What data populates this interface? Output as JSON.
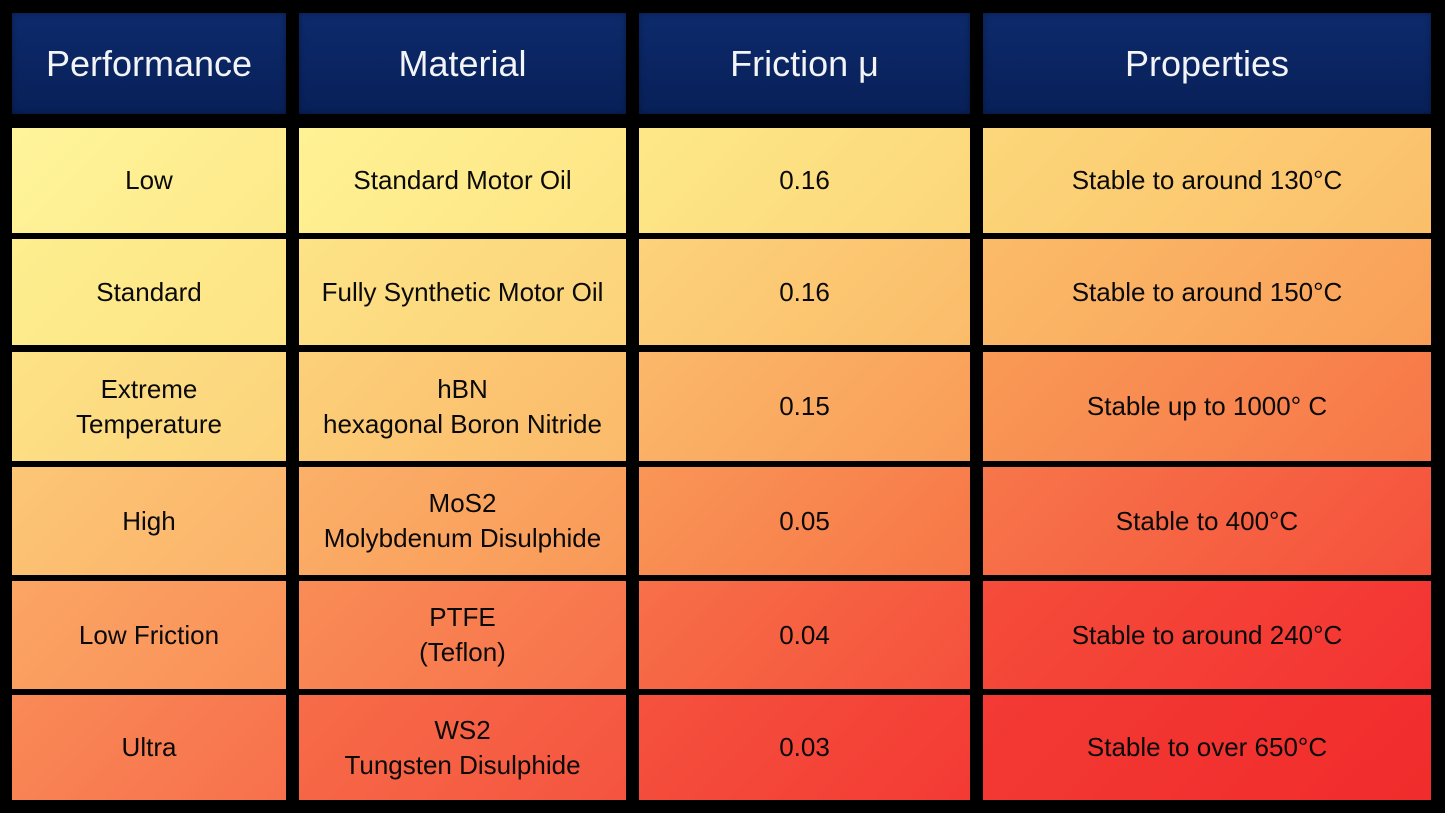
{
  "table": {
    "headers": [
      "Performance",
      "Material",
      "Friction μ",
      "Properties"
    ],
    "rows": [
      {
        "performance": [
          "Low"
        ],
        "material": [
          "Standard Motor Oil"
        ],
        "friction": "0.16",
        "properties": "Stable to around 130°C"
      },
      {
        "performance": [
          "Standard"
        ],
        "material": [
          "Fully Synthetic Motor Oil"
        ],
        "friction": "0.16",
        "properties": "Stable to around 150°C"
      },
      {
        "performance": [
          "Extreme",
          "Temperature"
        ],
        "material": [
          "hBN",
          "hexagonal Boron Nitride"
        ],
        "friction": "0.15",
        "properties": "Stable up to 1000° C"
      },
      {
        "performance": [
          "High"
        ],
        "material": [
          "MoS2",
          "Molybdenum Disulphide"
        ],
        "friction": "0.05",
        "properties": "Stable to 400°C"
      },
      {
        "performance": [
          "Low Friction"
        ],
        "material": [
          "PTFE",
          "(Teflon)"
        ],
        "friction": "0.04",
        "properties": "Stable to around 240°C"
      },
      {
        "performance": [
          "Ultra"
        ],
        "material": [
          "WS2",
          "Tungsten Disulphide"
        ],
        "friction": "0.03",
        "properties": "Stable to over 650°C"
      }
    ]
  },
  "colors": {
    "header_background": "#0a2460",
    "header_text": "#f2f4f8",
    "gradient_start": "#fff49a",
    "gradient_end": "#f12c2c",
    "border": "#000000"
  }
}
